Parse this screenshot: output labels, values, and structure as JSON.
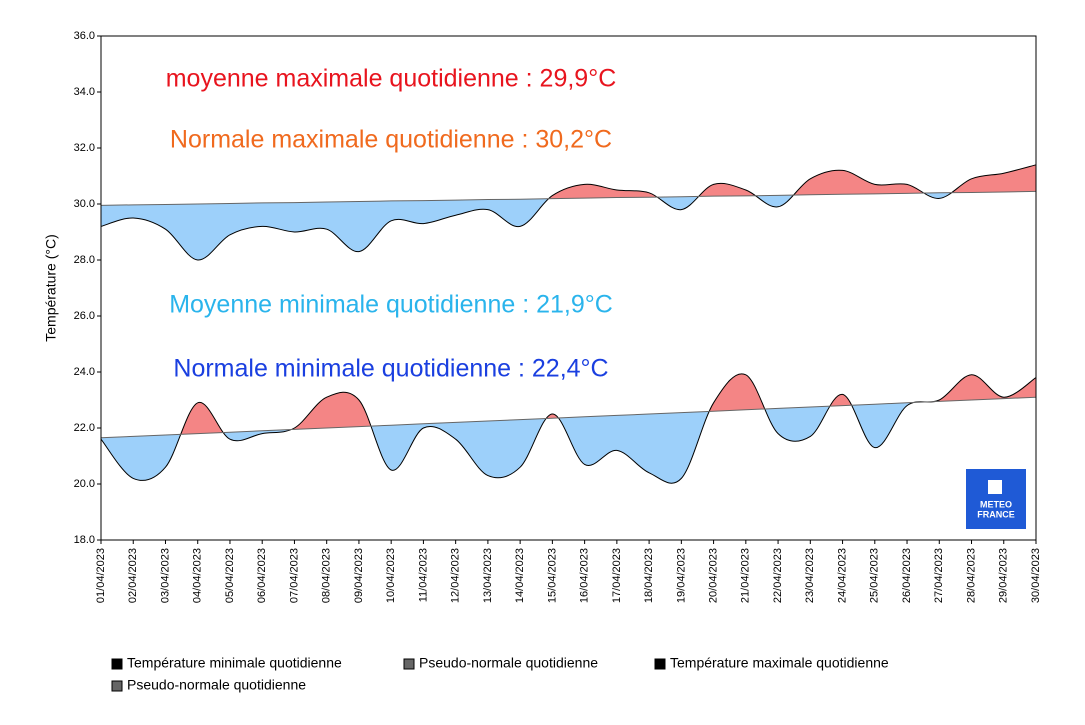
{
  "chart_data": {
    "type": "line",
    "y_label": "Température (°C)",
    "ylim": [
      18,
      36
    ],
    "yticks": [
      {
        "value": 18,
        "label": "18.0"
      },
      {
        "value": 20,
        "label": "20.0"
      },
      {
        "value": 22,
        "label": "22.0"
      },
      {
        "value": 24,
        "label": "24.0"
      },
      {
        "value": 26,
        "label": "26.0"
      },
      {
        "value": 28,
        "label": "28.0"
      },
      {
        "value": 30,
        "label": "30.0"
      },
      {
        "value": 32,
        "label": "32.0"
      },
      {
        "value": 34,
        "label": "34.0"
      },
      {
        "value": 36,
        "label": "36.0"
      }
    ],
    "grid": false,
    "above_color": "#f48585",
    "below_color": "#9dd0fa",
    "categories": [
      "01/04/2023",
      "02/04/2023",
      "03/04/2023",
      "04/04/2023",
      "05/04/2023",
      "06/04/2023",
      "07/04/2023",
      "08/04/2023",
      "09/04/2023",
      "10/04/2023",
      "11/04/2023",
      "12/04/2023",
      "13/04/2023",
      "14/04/2023",
      "15/04/2023",
      "16/04/2023",
      "17/04/2023",
      "18/04/2023",
      "19/04/2023",
      "20/04/2023",
      "21/04/2023",
      "22/04/2023",
      "23/04/2023",
      "24/04/2023",
      "25/04/2023",
      "26/04/2023",
      "27/04/2023",
      "28/04/2023",
      "29/04/2023",
      "30/04/2023"
    ],
    "series": [
      {
        "name": "Température minimale quotidienne",
        "color": "#000000",
        "values": [
          21.6,
          20.2,
          20.6,
          22.9,
          21.6,
          21.8,
          22.0,
          23.1,
          23.0,
          20.5,
          22.0,
          21.6,
          20.3,
          20.6,
          22.5,
          20.7,
          21.2,
          20.4,
          20.2,
          22.9,
          23.9,
          21.8,
          21.7,
          23.2,
          21.3,
          22.8,
          23.0,
          23.9,
          23.1,
          23.8
        ]
      },
      {
        "name": "Pseudo-normale quotidienne",
        "color": "#666666",
        "values": [
          21.65,
          21.7,
          21.75,
          21.8,
          21.85,
          21.9,
          21.95,
          22.0,
          22.05,
          22.1,
          22.15,
          22.2,
          22.25,
          22.3,
          22.35,
          22.4,
          22.45,
          22.5,
          22.55,
          22.6,
          22.65,
          22.7,
          22.75,
          22.8,
          22.85,
          22.9,
          22.95,
          23.0,
          23.05,
          23.1
        ]
      },
      {
        "name": "Température maximale quotidienne",
        "color": "#000000",
        "values": [
          29.2,
          29.5,
          29.1,
          28.0,
          28.9,
          29.2,
          29.0,
          29.1,
          28.3,
          29.4,
          29.3,
          29.6,
          29.8,
          29.2,
          30.3,
          30.7,
          30.5,
          30.4,
          29.8,
          30.7,
          30.5,
          29.9,
          30.9,
          31.2,
          30.7,
          30.7,
          30.2,
          30.9,
          31.1,
          31.4
        ]
      },
      {
        "name": "Pseudo-normale quotidienne",
        "color": "#666666",
        "values": [
          29.95,
          29.97,
          29.98,
          30.0,
          30.02,
          30.04,
          30.05,
          30.07,
          30.09,
          30.11,
          30.12,
          30.14,
          30.16,
          30.17,
          30.19,
          30.21,
          30.23,
          30.24,
          30.26,
          30.28,
          30.29,
          30.31,
          30.33,
          30.35,
          30.36,
          30.38,
          30.4,
          30.41,
          30.43,
          30.45
        ]
      }
    ],
    "annotations": [
      {
        "text": "moyenne maximale quotidienne : 29,9°C",
        "color": "#e8141e"
      },
      {
        "text": "Normale maximale quotidienne : 30,2°C",
        "color": "#f06a1e"
      },
      {
        "text": "Moyenne minimale quotidienne : 21,9°C",
        "color": "#2ab4ec"
      },
      {
        "text": "Normale minimale quotidienne : 22,4°C",
        "color": "#1a3fe0"
      }
    ],
    "logo_text": [
      "METEO",
      "FRANCE"
    ]
  }
}
